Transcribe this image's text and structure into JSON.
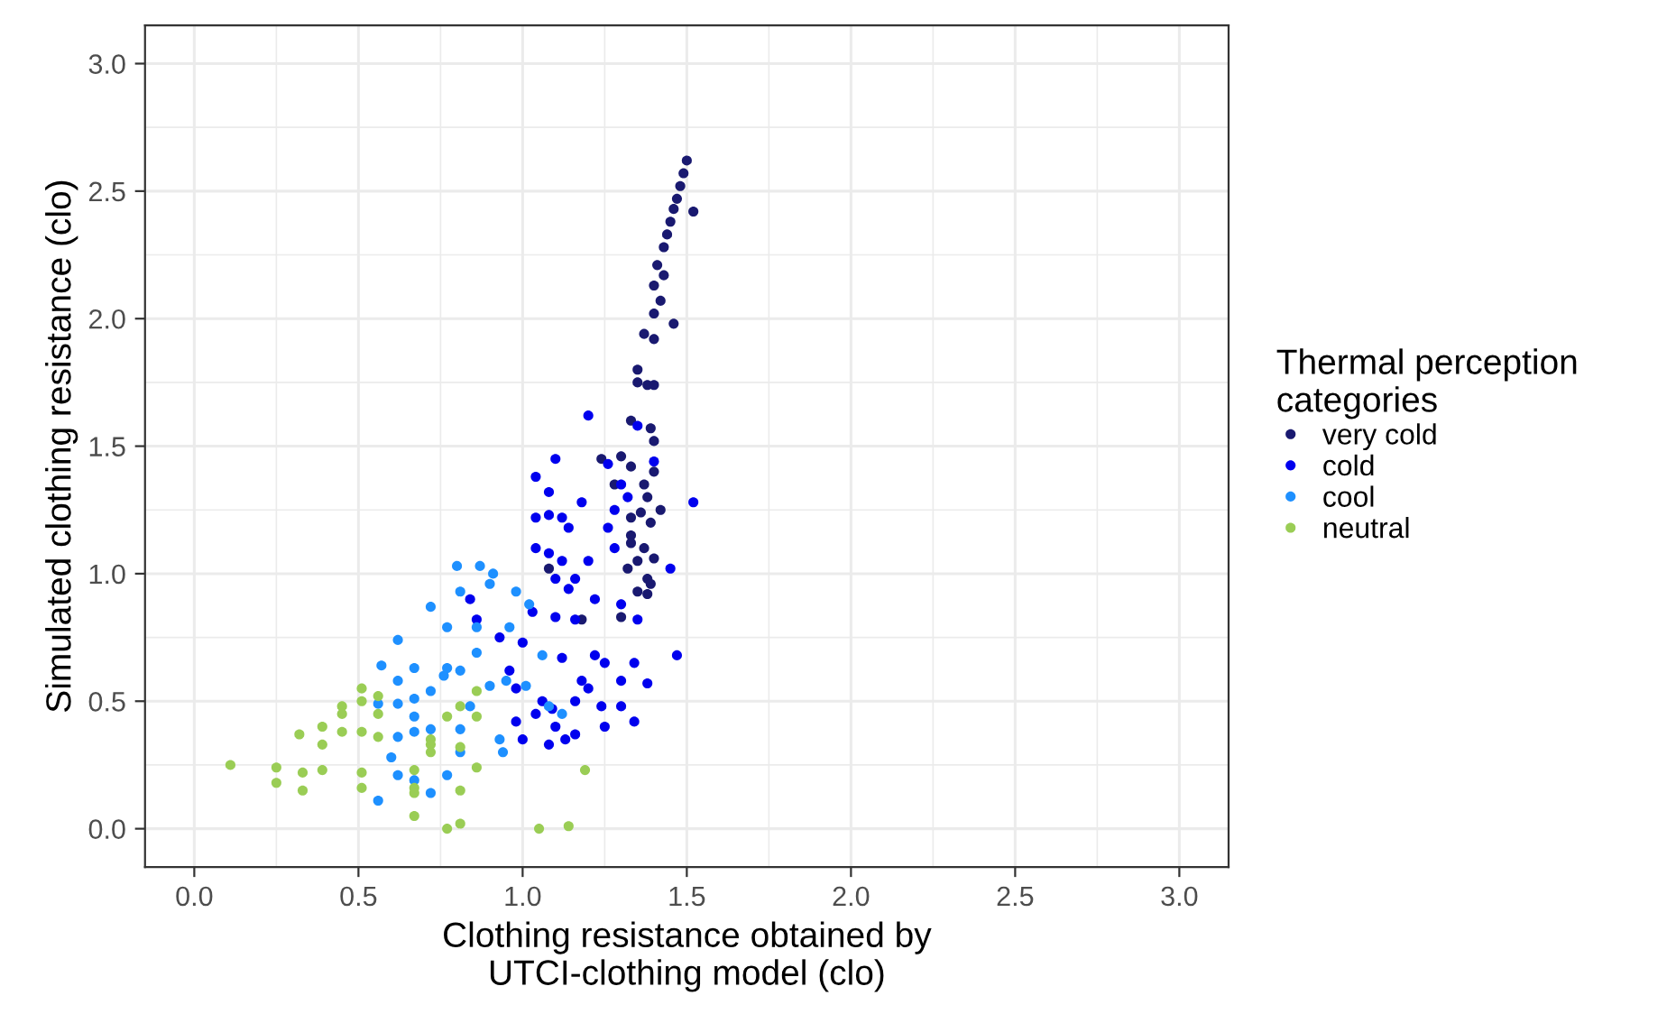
{
  "chart_data": {
    "type": "scatter",
    "xlabel": "Clothing resistance obtained by\nUTCI-clothing model (clo)",
    "ylabel": "Simulated clothing resistance (clo)",
    "legend_title": "Thermal perception\ncategories",
    "xlim": [
      -0.15,
      3.15
    ],
    "ylim": [
      -0.15,
      3.15
    ],
    "xticks": [
      {
        "value": 0,
        "label": "0.0"
      },
      0.5,
      {
        "value": 1,
        "label": "1.0"
      },
      1.5,
      {
        "value": 2,
        "label": "2.0"
      },
      2.5,
      {
        "value": 3,
        "label": "3.0"
      }
    ],
    "yticks": [
      {
        "value": 0,
        "label": "0.0"
      },
      0.5,
      {
        "value": 1,
        "label": "1.0"
      },
      1.5,
      {
        "value": 2,
        "label": "2.0"
      },
      2.5,
      {
        "value": 3,
        "label": "3.0"
      }
    ],
    "grid": true,
    "legend": "right",
    "marker": "circle",
    "series": [
      {
        "name": "very cold",
        "color": "#191970",
        "x": [
          1.5,
          1.49,
          1.48,
          1.47,
          1.46,
          1.52,
          1.45,
          1.44,
          1.43,
          1.41,
          1.43,
          1.4,
          1.42,
          1.4,
          1.46,
          1.37,
          1.4,
          1.35,
          1.35,
          1.38,
          1.4,
          1.33,
          1.39,
          1.4,
          1.3,
          1.33,
          1.4,
          1.37,
          1.28,
          1.38,
          1.36,
          1.39,
          1.33,
          1.33,
          1.37,
          1.35,
          1.4,
          1.08,
          1.38,
          1.39,
          1.35,
          1.38,
          1.18,
          1.3,
          1.32,
          1.24,
          1.33,
          1.42
        ],
        "values": [
          2.62,
          2.57,
          2.52,
          2.47,
          2.43,
          2.42,
          2.38,
          2.33,
          2.28,
          2.21,
          2.17,
          2.13,
          2.07,
          2.02,
          1.98,
          1.94,
          1.92,
          1.8,
          1.75,
          1.74,
          1.74,
          1.6,
          1.57,
          1.52,
          1.46,
          1.42,
          1.4,
          1.35,
          1.35,
          1.3,
          1.24,
          1.2,
          1.15,
          1.12,
          1.1,
          1.05,
          1.06,
          1.02,
          0.98,
          0.96,
          0.93,
          0.92,
          0.82,
          0.83,
          1.02,
          1.45,
          1.22,
          1.25
        ]
      },
      {
        "name": "cold",
        "color": "#0000ee",
        "x": [
          1.2,
          1.52,
          1.04,
          1.08,
          1.1,
          1.04,
          1.08,
          1.12,
          1.18,
          1.26,
          1.3,
          1.32,
          1.28,
          1.04,
          1.08,
          1.12,
          1.14,
          1.26,
          1.28,
          1.22,
          1.3,
          1.35,
          1.16,
          1.1,
          1.14,
          1.2,
          1.03,
          1.1,
          1.16,
          1.22,
          1.25,
          1.3,
          1.34,
          1.0,
          1.12,
          1.2,
          1.3,
          1.34,
          1.47,
          1.38,
          1.06,
          1.09,
          1.16,
          1.18,
          1.24,
          1.04,
          1.1,
          1.16,
          1.25,
          1.08,
          1.13,
          0.98,
          1.0,
          0.96,
          0.98,
          0.84,
          0.86,
          0.93,
          1.35,
          1.4,
          1.45
        ],
        "values": [
          1.62,
          1.28,
          1.38,
          1.32,
          1.45,
          1.22,
          1.23,
          1.22,
          1.28,
          1.43,
          1.35,
          1.3,
          1.25,
          1.1,
          1.08,
          1.05,
          1.18,
          1.18,
          1.1,
          0.9,
          0.88,
          0.82,
          0.98,
          0.98,
          0.94,
          1.05,
          0.85,
          0.83,
          0.82,
          0.68,
          0.65,
          0.58,
          0.65,
          0.73,
          0.67,
          0.55,
          0.48,
          0.42,
          0.68,
          0.57,
          0.5,
          0.47,
          0.5,
          0.58,
          0.48,
          0.45,
          0.4,
          0.37,
          0.4,
          0.33,
          0.35,
          0.42,
          0.35,
          0.62,
          0.55,
          0.9,
          0.82,
          0.75,
          1.58,
          1.44,
          1.02
        ]
      },
      {
        "name": "cool",
        "color": "#1e90ff",
        "x": [
          0.62,
          0.72,
          0.77,
          0.86,
          0.81,
          0.9,
          0.62,
          0.62,
          0.67,
          0.67,
          0.56,
          0.67,
          0.72,
          0.77,
          0.81,
          0.86,
          0.9,
          0.62,
          0.62,
          0.67,
          0.72,
          0.77,
          0.81,
          0.81,
          0.94,
          0.67,
          0.56,
          0.72,
          0.96,
          0.57,
          0.87,
          0.8,
          0.91,
          0.98,
          1.02,
          1.06,
          0.93,
          1.08,
          1.12,
          0.95,
          1.01,
          0.6,
          0.76,
          0.84
        ],
        "values": [
          0.74,
          0.87,
          0.79,
          0.79,
          0.93,
          0.96,
          0.58,
          0.49,
          0.51,
          0.44,
          0.49,
          0.63,
          0.54,
          0.63,
          0.62,
          0.69,
          0.56,
          0.36,
          0.21,
          0.38,
          0.39,
          0.21,
          0.39,
          0.3,
          0.3,
          0.19,
          0.11,
          0.14,
          0.79,
          0.64,
          1.03,
          1.03,
          1.0,
          0.93,
          0.88,
          0.68,
          0.35,
          0.48,
          0.45,
          0.58,
          0.56,
          0.28,
          0.6,
          0.48
        ]
      },
      {
        "name": "neutral",
        "color": "#9acd55",
        "x": [
          0.11,
          0.25,
          0.25,
          0.33,
          0.33,
          0.39,
          0.32,
          0.39,
          0.39,
          0.45,
          0.45,
          0.45,
          0.51,
          0.51,
          0.51,
          0.56,
          0.56,
          0.56,
          0.51,
          0.51,
          0.67,
          0.67,
          0.67,
          0.67,
          0.72,
          0.72,
          0.72,
          0.77,
          0.81,
          0.81,
          0.81,
          0.86,
          0.86,
          0.86,
          0.77,
          0.81,
          1.19,
          1.05,
          1.14
        ],
        "values": [
          0.25,
          0.24,
          0.18,
          0.22,
          0.15,
          0.23,
          0.37,
          0.4,
          0.33,
          0.48,
          0.45,
          0.38,
          0.55,
          0.5,
          0.38,
          0.52,
          0.45,
          0.36,
          0.22,
          0.16,
          0.23,
          0.16,
          0.14,
          0.05,
          0.35,
          0.33,
          0.3,
          0.44,
          0.48,
          0.32,
          0.15,
          0.54,
          0.44,
          0.24,
          0.0,
          0.02,
          0.23,
          0.0,
          0.01
        ]
      }
    ]
  }
}
